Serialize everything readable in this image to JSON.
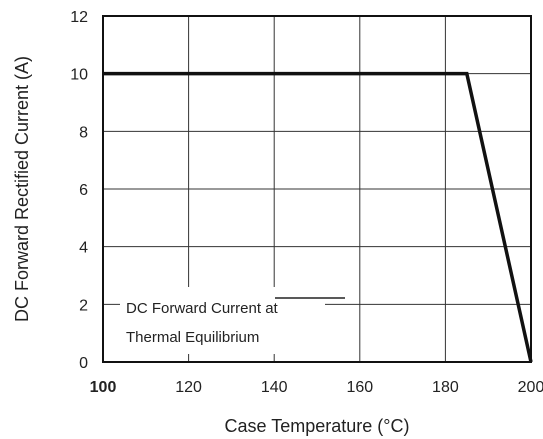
{
  "chart_data": {
    "type": "line",
    "xlabel": "Case Temperature (°C)",
    "ylabel": "DC Forward Rectified Current (A)",
    "xlim": [
      100,
      200
    ],
    "ylim": [
      0,
      12
    ],
    "x_ticks": [
      "100",
      "120",
      "140",
      "160",
      "180",
      "200"
    ],
    "y_ticks": [
      "0",
      "2",
      "4",
      "6",
      "8",
      "10",
      "12"
    ],
    "grid": true,
    "series": [
      {
        "x": [
          100,
          185,
          200
        ],
        "y": [
          10,
          10,
          0
        ]
      }
    ],
    "annotation": {
      "lines": [
        "DC Forward Current at",
        "Thermal Equilibrium"
      ]
    }
  }
}
